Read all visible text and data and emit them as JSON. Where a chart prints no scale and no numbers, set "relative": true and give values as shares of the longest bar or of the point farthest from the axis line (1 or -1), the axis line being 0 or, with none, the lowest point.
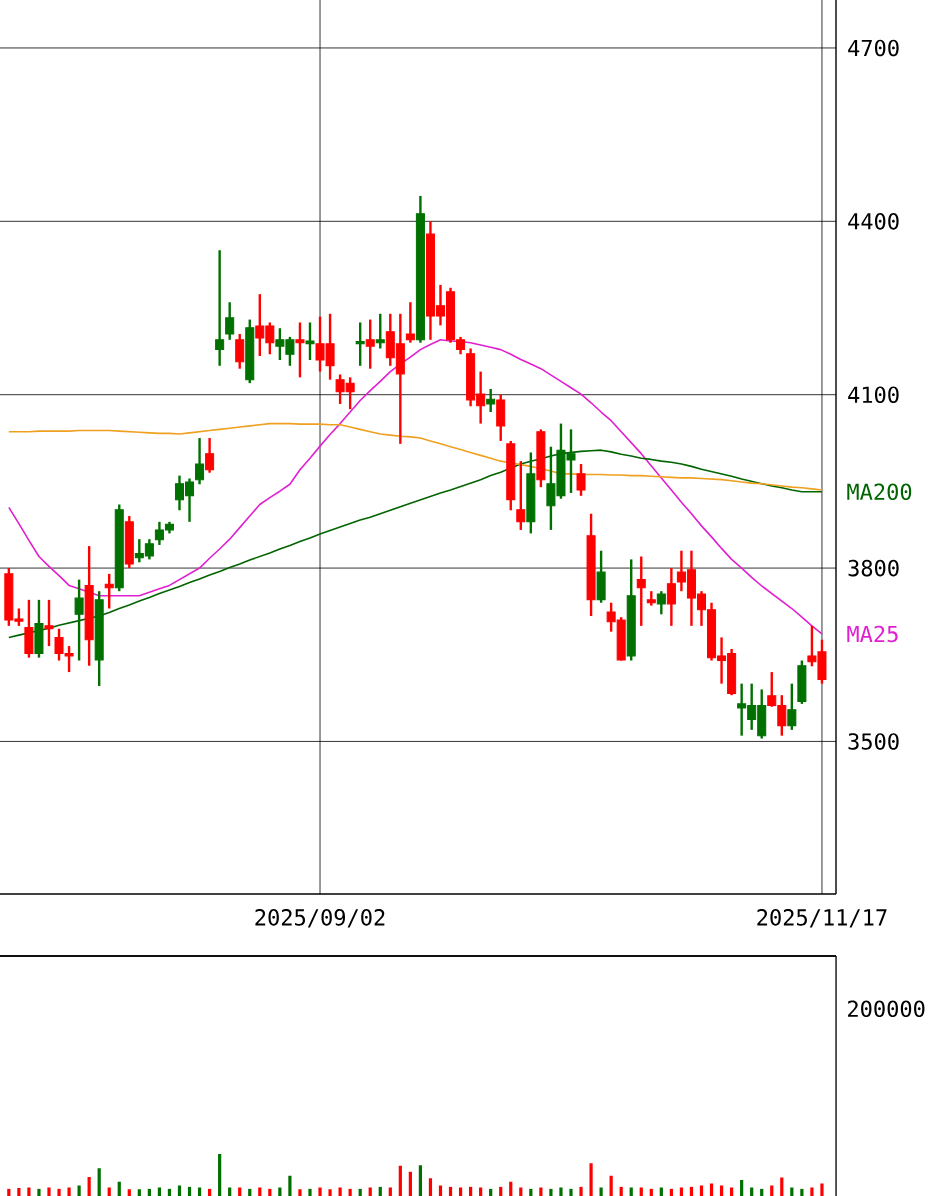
{
  "chart_data": [
    {
      "type": "candlestick",
      "categories": [
        null,
        null,
        null,
        null,
        null,
        null,
        null,
        null,
        null,
        null,
        null,
        null,
        null,
        null,
        null,
        null,
        null,
        null,
        null,
        null,
        null,
        null,
        null,
        null,
        null,
        null,
        null,
        null,
        null,
        null,
        null,
        "2025/09/02",
        null,
        null,
        null,
        null,
        null,
        null,
        null,
        null,
        null,
        null,
        null,
        null,
        null,
        null,
        null,
        null,
        null,
        null,
        null,
        null,
        null,
        null,
        null,
        null,
        null,
        null,
        null,
        null,
        null,
        null,
        null,
        null,
        null,
        null,
        null,
        null,
        null,
        null,
        null,
        null,
        null,
        null,
        null,
        null,
        null,
        null,
        null,
        null,
        null,
        "2025/11/17"
      ],
      "ohlc": [
        [
          3790,
          3800,
          3700,
          3710
        ],
        [
          3712,
          3730,
          3700,
          3708
        ],
        [
          3697,
          3745,
          3645,
          3652
        ],
        [
          3652,
          3745,
          3645,
          3704
        ],
        [
          3700,
          3745,
          3665,
          3695
        ],
        [
          3680,
          3695,
          3640,
          3652
        ],
        [
          3652,
          3665,
          3620,
          3648
        ],
        [
          3720,
          3780,
          3640,
          3748
        ],
        [
          3770,
          3838,
          3631,
          3676
        ],
        [
          3641,
          3760,
          3596,
          3745
        ],
        [
          3772,
          3790,
          3730,
          3766
        ],
        [
          3766,
          3910,
          3760,
          3901
        ],
        [
          3880,
          3890,
          3800,
          3807
        ],
        [
          3818,
          3850,
          3810,
          3825
        ],
        [
          3821,
          3850,
          3815,
          3842
        ],
        [
          3849,
          3880,
          3840,
          3866
        ],
        [
          3866,
          3880,
          3860,
          3876
        ],
        [
          3918,
          3960,
          3900,
          3946
        ],
        [
          3925,
          3955,
          3880,
          3949
        ],
        [
          3953,
          4025,
          3945,
          3980
        ],
        [
          3998,
          4025,
          3965,
          3970
        ],
        [
          4178,
          4350,
          4150,
          4195
        ],
        [
          4205,
          4260,
          4195,
          4233
        ],
        [
          4195,
          4205,
          4145,
          4157
        ],
        [
          4126,
          4230,
          4120,
          4216
        ],
        [
          4219,
          4274,
          4167,
          4198
        ],
        [
          4219,
          4225,
          4170,
          4190
        ],
        [
          4184,
          4215,
          4160,
          4195
        ],
        [
          4170,
          4200,
          4150,
          4195
        ],
        [
          4195,
          4225,
          4130,
          4190
        ],
        [
          4188,
          4225,
          4160,
          4193
        ],
        [
          4188,
          4235,
          4140,
          4160
        ],
        [
          4188,
          4240,
          4126,
          4150
        ],
        [
          4126,
          4135,
          4084,
          4105
        ],
        [
          4120,
          4130,
          4075,
          4105
        ],
        [
          4188,
          4225,
          4150,
          4192
        ],
        [
          4195,
          4230,
          4145,
          4184
        ],
        [
          4190,
          4240,
          4180,
          4195
        ],
        [
          4209,
          4240,
          4150,
          4164
        ],
        [
          4188,
          4240,
          4015,
          4136
        ],
        [
          4205,
          4260,
          4190,
          4195
        ],
        [
          4195,
          4444,
          4190,
          4413
        ],
        [
          4378,
          4400,
          4195,
          4236
        ],
        [
          4254,
          4290,
          4220,
          4236
        ],
        [
          4278,
          4285,
          4190,
          4195
        ],
        [
          4195,
          4200,
          4170,
          4178
        ],
        [
          4171,
          4180,
          4080,
          4091
        ],
        [
          4101,
          4140,
          4050,
          4081
        ],
        [
          4084,
          4110,
          4070,
          4092
        ],
        [
          4091,
          4100,
          4020,
          4046
        ],
        [
          4015,
          4020,
          3900,
          3918
        ],
        [
          3901,
          3985,
          3866,
          3880
        ],
        [
          3880,
          4000,
          3860,
          3963
        ],
        [
          4036,
          4040,
          3940,
          3953
        ],
        [
          3908,
          4010,
          3866,
          3946
        ],
        [
          3925,
          4050,
          3920,
          4004
        ],
        [
          3987,
          4040,
          3930,
          3998
        ],
        [
          3963,
          3980,
          3925,
          3935
        ],
        [
          3856,
          3894,
          3717,
          3745
        ],
        [
          3745,
          3830,
          3740,
          3793
        ],
        [
          3724,
          3740,
          3690,
          3707
        ],
        [
          3710,
          3715,
          3640,
          3641
        ],
        [
          3648,
          3815,
          3640,
          3752
        ],
        [
          3780,
          3820,
          3700,
          3766
        ],
        [
          3745,
          3760,
          3735,
          3740
        ],
        [
          3738,
          3760,
          3720,
          3755
        ],
        [
          3773,
          3800,
          3700,
          3738
        ],
        [
          3793,
          3830,
          3760,
          3776
        ],
        [
          3797,
          3830,
          3700,
          3748
        ],
        [
          3755,
          3760,
          3700,
          3728
        ],
        [
          3728,
          3740,
          3640,
          3645
        ],
        [
          3648,
          3680,
          3600,
          3640
        ],
        [
          3652,
          3660,
          3580,
          3583
        ],
        [
          3558,
          3600,
          3510,
          3565
        ],
        [
          3538,
          3600,
          3520,
          3562
        ],
        [
          3510,
          3590,
          3505,
          3562
        ],
        [
          3579,
          3620,
          3560,
          3562
        ],
        [
          3562,
          3580,
          3510,
          3527
        ],
        [
          3527,
          3600,
          3520,
          3555
        ],
        [
          3569,
          3640,
          3565,
          3631
        ],
        [
          3648,
          3700,
          3630,
          3638
        ],
        [
          3655,
          3676,
          3600,
          3607
        ]
      ],
      "colors": [
        "#ff0000",
        "#ff0000",
        "#ff0000",
        "#007000",
        "#ff0000",
        "#ff0000",
        "#ff0000",
        "#007000",
        "#ff0000",
        "#007000",
        "#ff0000",
        "#007000",
        "#ff0000",
        "#007000",
        "#007000",
        "#007000",
        "#007000",
        "#007000",
        "#007000",
        "#007000",
        "#ff0000",
        "#007000",
        "#007000",
        "#ff0000",
        "#007000",
        "#ff0000",
        "#ff0000",
        "#007000",
        "#007000",
        "#ff0000",
        "#007000",
        "#ff0000",
        "#ff0000",
        "#ff0000",
        "#ff0000",
        "#007000",
        "#ff0000",
        "#007000",
        "#ff0000",
        "#ff0000",
        "#ff0000",
        "#007000",
        "#ff0000",
        "#ff0000",
        "#ff0000",
        "#ff0000",
        "#ff0000",
        "#ff0000",
        "#007000",
        "#ff0000",
        "#ff0000",
        "#ff0000",
        "#007000",
        "#ff0000",
        "#007000",
        "#007000",
        "#007000",
        "#ff0000",
        "#ff0000",
        "#007000",
        "#ff0000",
        "#ff0000",
        "#007000",
        "#ff0000",
        "#ff0000",
        "#007000",
        "#ff0000",
        "#ff0000",
        "#ff0000",
        "#ff0000",
        "#ff0000",
        "#ff0000",
        "#ff0000",
        "#007000",
        "#007000",
        "#007000",
        "#ff0000",
        "#ff0000",
        "#007000",
        "#007000",
        "#ff0000",
        "#ff0000"
      ],
      "series": [
        {
          "type": "line",
          "name": "MA25",
          "color": "#e020d0",
          "values": [
            3905,
            3877,
            3848,
            3820,
            3803,
            3787,
            3770,
            3764,
            3758,
            3752,
            3752,
            3752,
            3752,
            3752,
            3758,
            3764,
            3770,
            3780,
            3790,
            3800,
            3817,
            3833,
            3850,
            3870,
            3890,
            3910,
            3922,
            3933,
            3945,
            3970,
            3990,
            4011,
            4031,
            4050,
            4070,
            4090,
            4107,
            4123,
            4140,
            4153,
            4165,
            4178,
            4187,
            4195,
            4193,
            4192,
            4190,
            4186,
            4182,
            4178,
            4170,
            4161,
            4153,
            4145,
            4134,
            4123,
            4112,
            4101,
            4086,
            4070,
            4055,
            4036,
            4017,
            3998,
            3977,
            3956,
            3935,
            3914,
            3894,
            3873,
            3854,
            3834,
            3815,
            3800,
            3784,
            3769,
            3756,
            3743,
            3730,
            3715,
            3700,
            3686
          ]
        },
        {
          "type": "line",
          "name": "MA200",
          "color": "#006400",
          "values": [
            3680,
            3684,
            3688,
            3692,
            3696,
            3701,
            3705,
            3709,
            3713,
            3717,
            3723,
            3730,
            3736,
            3743,
            3749,
            3756,
            3762,
            3768,
            3775,
            3781,
            3788,
            3794,
            3801,
            3807,
            3814,
            3820,
            3826,
            3833,
            3839,
            3846,
            3852,
            3859,
            3865,
            3871,
            3877,
            3883,
            3888,
            3894,
            3900,
            3906,
            3912,
            3918,
            3924,
            3930,
            3935,
            3941,
            3947,
            3953,
            3960,
            3966,
            3973,
            3980,
            3985,
            3989,
            3994,
            3998,
            4000,
            4002,
            4003,
            4004,
            4001,
            3997,
            3994,
            3990,
            3988,
            3985,
            3983,
            3980,
            3976,
            3971,
            3967,
            3963,
            3959,
            3954,
            3950,
            3946,
            3942,
            3939,
            3935,
            3932,
            3932,
            3932
          ]
        },
        {
          "type": "line",
          "color": "#f0a020",
          "values": [
            4036,
            4036,
            4036,
            4037,
            4037,
            4037,
            4037,
            4038,
            4038,
            4038,
            4038,
            4037,
            4036,
            4035,
            4034,
            4033,
            4033,
            4032,
            4034,
            4036,
            4038,
            4040,
            4042,
            4044,
            4046,
            4048,
            4050,
            4050,
            4050,
            4049,
            4049,
            4049,
            4048,
            4048,
            4044,
            4040,
            4036,
            4032,
            4030,
            4028,
            4027,
            4025,
            4020,
            4015,
            4010,
            4005,
            4000,
            3995,
            3990,
            3985,
            3982,
            3979,
            3976,
            3972,
            3968,
            3963,
            3963,
            3962,
            3962,
            3962,
            3961,
            3961,
            3960,
            3960,
            3959,
            3958,
            3957,
            3956,
            3956,
            3955,
            3954,
            3953,
            3951,
            3949,
            3947,
            3946,
            3944,
            3942,
            3940,
            3939,
            3937,
            3935
          ]
        }
      ],
      "ylim": [
        3236,
        4783
      ],
      "yticks": [
        3500,
        3800,
        4100,
        4400,
        4700
      ],
      "grid": true
    },
    {
      "type": "bar",
      "relative": true,
      "categories": [
        null,
        null,
        null,
        null,
        null,
        null,
        null,
        null,
        null,
        null,
        null,
        null,
        null,
        null,
        null,
        null,
        null,
        null,
        null,
        null,
        null,
        null,
        null,
        null,
        null,
        null,
        null,
        null,
        null,
        null,
        null,
        null,
        null,
        null,
        null,
        null,
        null,
        null,
        null,
        null,
        null,
        null,
        null,
        null,
        null,
        null,
        null,
        null,
        null,
        null,
        null,
        null,
        null,
        null,
        null,
        null,
        null,
        null,
        null,
        null,
        null,
        null,
        null,
        null,
        null,
        null,
        null,
        null,
        null,
        null,
        null,
        null,
        null,
        null,
        null,
        null,
        null,
        null,
        null,
        null,
        null,
        null
      ],
      "values": [
        0.17,
        0.19,
        0.2,
        0.17,
        0.2,
        0.17,
        0.2,
        0.25,
        0.45,
        0.66,
        0.2,
        0.34,
        0.16,
        0.16,
        0.17,
        0.2,
        0.17,
        0.25,
        0.22,
        0.2,
        0.17,
        1.0,
        0.2,
        0.2,
        0.17,
        0.2,
        0.17,
        0.2,
        0.48,
        0.16,
        0.17,
        0.2,
        0.16,
        0.2,
        0.17,
        0.17,
        0.2,
        0.22,
        0.2,
        0.72,
        0.58,
        0.73,
        0.42,
        0.25,
        0.22,
        0.2,
        0.22,
        0.2,
        0.17,
        0.22,
        0.34,
        0.2,
        0.17,
        0.2,
        0.17,
        0.2,
        0.17,
        0.22,
        0.78,
        0.2,
        0.48,
        0.22,
        0.2,
        0.2,
        0.17,
        0.2,
        0.17,
        0.2,
        0.22,
        0.25,
        0.3,
        0.25,
        0.2,
        0.38,
        0.2,
        0.17,
        0.25,
        0.44,
        0.2,
        0.17,
        0.2,
        0.3
      ],
      "colors": [
        "#ff0000",
        "#ff0000",
        "#ff0000",
        "#007000",
        "#ff0000",
        "#ff0000",
        "#ff0000",
        "#007000",
        "#ff0000",
        "#007000",
        "#ff0000",
        "#007000",
        "#ff0000",
        "#007000",
        "#007000",
        "#007000",
        "#007000",
        "#007000",
        "#007000",
        "#007000",
        "#ff0000",
        "#007000",
        "#007000",
        "#ff0000",
        "#007000",
        "#ff0000",
        "#ff0000",
        "#007000",
        "#007000",
        "#ff0000",
        "#007000",
        "#ff0000",
        "#ff0000",
        "#ff0000",
        "#ff0000",
        "#007000",
        "#ff0000",
        "#007000",
        "#ff0000",
        "#ff0000",
        "#ff0000",
        "#007000",
        "#ff0000",
        "#ff0000",
        "#ff0000",
        "#ff0000",
        "#ff0000",
        "#ff0000",
        "#007000",
        "#ff0000",
        "#ff0000",
        "#ff0000",
        "#007000",
        "#ff0000",
        "#007000",
        "#007000",
        "#007000",
        "#ff0000",
        "#ff0000",
        "#007000",
        "#ff0000",
        "#ff0000",
        "#007000",
        "#ff0000",
        "#ff0000",
        "#007000",
        "#ff0000",
        "#ff0000",
        "#ff0000",
        "#ff0000",
        "#ff0000",
        "#ff0000",
        "#ff0000",
        "#007000",
        "#007000",
        "#007000",
        "#ff0000",
        "#ff0000",
        "#007000",
        "#007000",
        "#ff0000",
        "#ff0000"
      ],
      "annotations": [
        "200000"
      ]
    }
  ]
}
